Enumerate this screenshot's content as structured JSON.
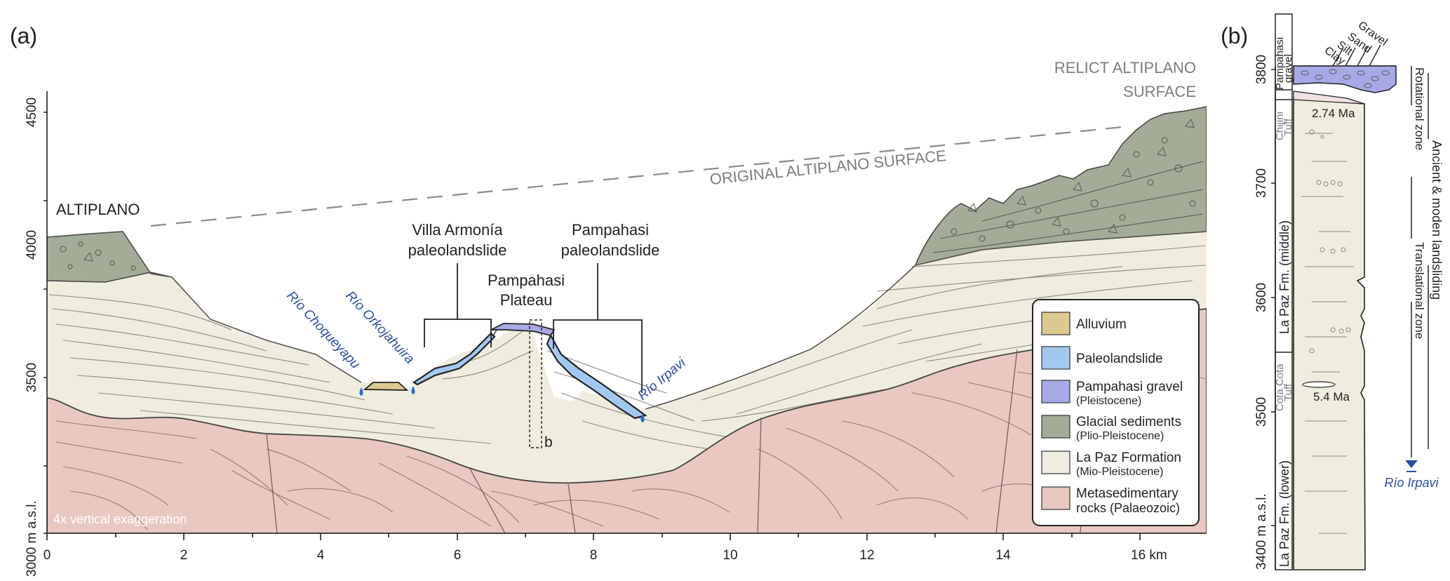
{
  "panel_a": {
    "label": "(a)",
    "y_axis": {
      "ticks": [
        "3000 m a.s.l.",
        "3500",
        "4000",
        "4500"
      ]
    },
    "x_axis": {
      "ticks": [
        "0",
        "2",
        "4",
        "6",
        "8",
        "10",
        "12",
        "14",
        "16 km"
      ]
    },
    "annotations": {
      "relict_line1": "RELICT ALTIPLANO",
      "relict_line2": "SURFACE",
      "original_surface": "ORIGINAL ALTIPLANO SURFACE",
      "altiplano": "ALTIPLANO",
      "villa_line1": "Villa Armonía",
      "villa_line2": "paleolandslide",
      "pampahasi_slide_line1": "Pampahasi",
      "pampahasi_slide_line2": "paleolandslide",
      "plateau_line1": "Pampahasi",
      "plateau_line2": "Plateau",
      "rio_choqueyapu": "Río Choqueyapu",
      "rio_orkojahuira": "Río Orkojahuira",
      "rio_irpavi": "Río Irpavi",
      "section_marker": "b",
      "exaggeration": "4x vertical exaggeration"
    },
    "legend": [
      {
        "label": "Alluvium",
        "sub": "",
        "color": "#dcc98f"
      },
      {
        "label": "Paleolandslide",
        "sub": "",
        "color": "#a3c8f0"
      },
      {
        "label": "Pampahasi gravel",
        "sub": "(Pleistocene)",
        "color": "#a7a9e6"
      },
      {
        "label": "Glacial sediments",
        "sub": "(Plio-Pleistocene)",
        "color": "#a2ac97"
      },
      {
        "label": "La Paz Formation",
        "sub": "(Mio-Pleistocene)",
        "color": "#efedde"
      },
      {
        "label": "Metasedimentary",
        "sub": "rocks (Palaeozoic)",
        "color": "#e8c8c0"
      }
    ]
  },
  "panel_b": {
    "label": "(b)",
    "y_axis": {
      "ticks": [
        "3400 m a.s.l.",
        "3500",
        "3600",
        "3700",
        "3800"
      ]
    },
    "grain_sizes": [
      "Clay",
      "Silt",
      "Sand",
      "Gravel"
    ],
    "units": {
      "pampahasi_line1": "Pampahasi",
      "pampahasi_line2": "gravel",
      "chijini_line1": "Chijini",
      "chijini_line2": "Tuff",
      "middle": "La Paz Fm. (middle)",
      "cotacota_line1": "Cota Cota",
      "cotacota_line2": "Tuff",
      "lower": "La Paz Fm. (lower)"
    },
    "ages": {
      "chijini": "2.74 Ma",
      "cotacota": "5.4 Ma"
    },
    "zones": {
      "rotational": "Rotational zone",
      "translational": "Translational zone",
      "ancient": "Ancient & moden landsliding"
    },
    "river": "Río Irpavi"
  }
}
